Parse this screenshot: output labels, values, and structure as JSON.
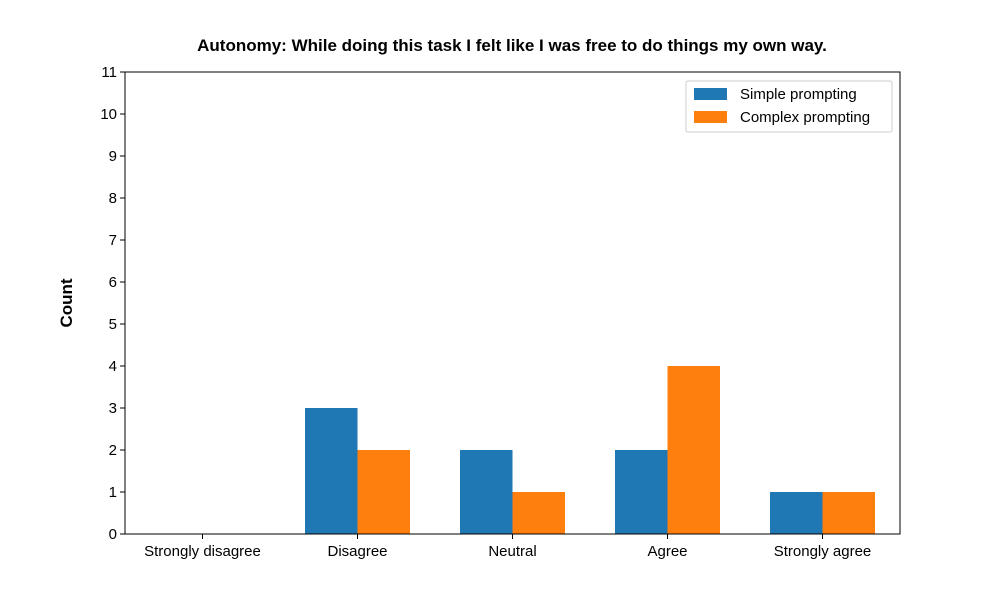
{
  "chart_data": {
    "type": "bar",
    "title": "Autonomy: While doing this task I felt like I was free to do things my own way.",
    "xlabel": "",
    "ylabel": "Count",
    "categories": [
      "Strongly disagree",
      "Disagree",
      "Neutral",
      "Agree",
      "Strongly agree"
    ],
    "series": [
      {
        "name": "Simple prompting",
        "values": [
          0,
          3,
          2,
          2,
          1
        ],
        "color": "#1f77b4"
      },
      {
        "name": "Complex prompting",
        "values": [
          0,
          2,
          1,
          4,
          1
        ],
        "color": "#ff7f0e"
      }
    ],
    "ylim": [
      0,
      11
    ],
    "yticks": [
      0,
      1,
      2,
      3,
      4,
      5,
      6,
      7,
      8,
      9,
      10,
      11
    ],
    "grid": false,
    "legend_position": "top-right"
  }
}
